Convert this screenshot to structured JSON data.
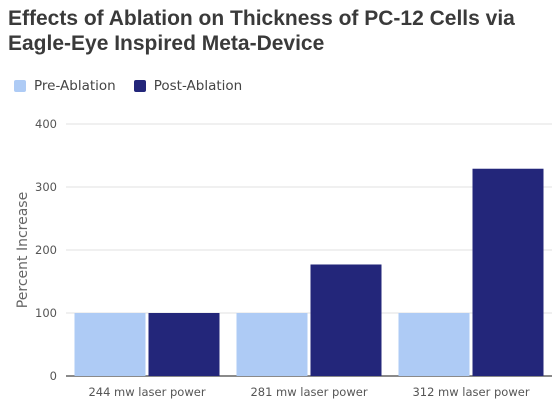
{
  "chart_data": {
    "type": "bar",
    "title": "Effects of Ablation on Thickness of PC-12 Cells via Eagle-Eye Inspired Meta-Device",
    "xlabel": "",
    "ylabel": "Percent Increase",
    "categories": [
      "244 mw laser power",
      "281 mw laser power",
      "312 mw laser power"
    ],
    "series": [
      {
        "name": "Pre-Ablation",
        "color": "#aecbf5",
        "values": [
          100,
          100,
          100
        ]
      },
      {
        "name": "Post-Ablation",
        "color": "#23267a",
        "values": [
          100,
          177,
          329
        ]
      }
    ],
    "ylim": [
      0,
      400
    ],
    "yticks": [
      0,
      100,
      200,
      300,
      400
    ],
    "grid": true,
    "legend_position": "top-left"
  }
}
